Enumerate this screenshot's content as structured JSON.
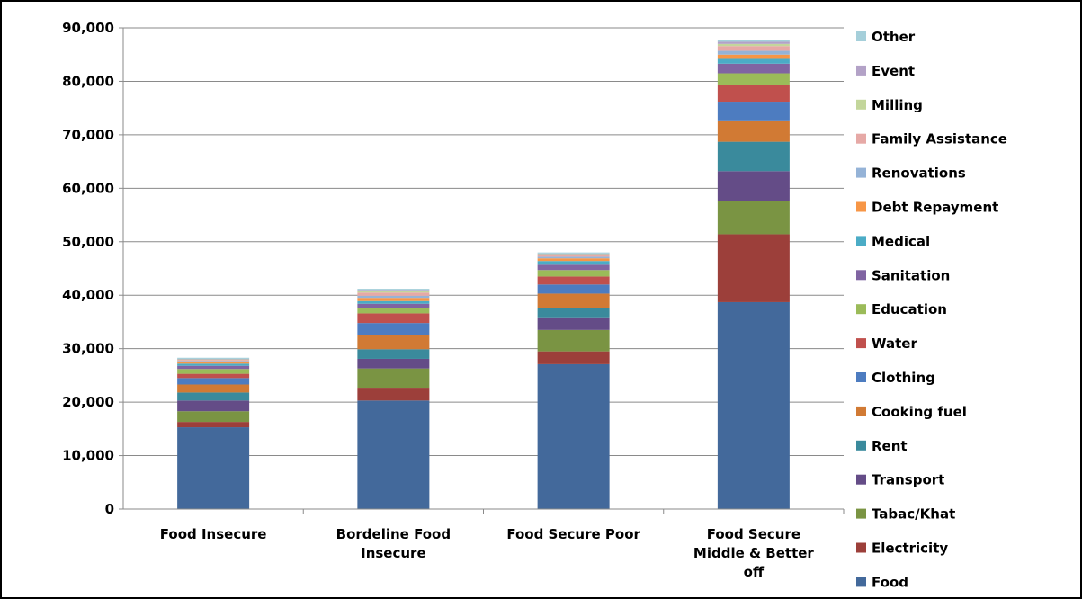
{
  "chart_data": {
    "type": "bar",
    "stacked": true,
    "categories": [
      [
        "Food Insecure"
      ],
      [
        "Bordeline Food",
        "Insecure"
      ],
      [
        "Food Secure Poor"
      ],
      [
        "Food Secure",
        "Middle & Better",
        "off"
      ]
    ],
    "ylim": [
      0,
      90000
    ],
    "yticks": [
      0,
      10000,
      20000,
      30000,
      40000,
      50000,
      60000,
      70000,
      80000,
      90000
    ],
    "ytick_labels": [
      "0",
      "10,000",
      "20,000",
      "30,000",
      "40,000",
      "50,000",
      "60,000",
      "70,000",
      "80,000",
      "90,000"
    ],
    "grid": true,
    "legend_placement": "right",
    "series": [
      {
        "name": "Food",
        "color": "#43699b",
        "values": [
          15300,
          20300,
          27100,
          38700
        ]
      },
      {
        "name": "Electricity",
        "color": "#9c3f3a",
        "values": [
          1000,
          2400,
          2400,
          12700
        ]
      },
      {
        "name": "Tabac/Khat",
        "color": "#7a9443",
        "values": [
          2000,
          3600,
          4000,
          6200
        ]
      },
      {
        "name": "Transport",
        "color": "#644c87",
        "values": [
          2000,
          1800,
          2200,
          5600
        ]
      },
      {
        "name": "Rent",
        "color": "#3a8a9c",
        "values": [
          1500,
          1800,
          1900,
          5500
        ]
      },
      {
        "name": "Cooking fuel",
        "color": "#d17a34",
        "values": [
          1500,
          2700,
          2700,
          4000
        ]
      },
      {
        "name": "Clothing",
        "color": "#4d7cc0",
        "values": [
          1200,
          2200,
          1700,
          3500
        ]
      },
      {
        "name": "Water",
        "color": "#c0504d",
        "values": [
          800,
          1800,
          1500,
          3100
        ]
      },
      {
        "name": "Education",
        "color": "#9bbb59",
        "values": [
          900,
          1000,
          1200,
          2200
        ]
      },
      {
        "name": "Sanitation",
        "color": "#8064a2",
        "values": [
          600,
          800,
          1000,
          1800
        ]
      },
      {
        "name": "Medical",
        "color": "#4bacc6",
        "values": [
          400,
          500,
          700,
          900
        ]
      },
      {
        "name": "Debt Repayment",
        "color": "#f79646",
        "values": [
          300,
          600,
          500,
          800
        ]
      },
      {
        "name": "Renovations",
        "color": "#95b3d7",
        "values": [
          200,
          400,
          300,
          700
        ]
      },
      {
        "name": "Family Assistance",
        "color": "#e6a9a6",
        "values": [
          200,
          600,
          300,
          900
        ]
      },
      {
        "name": "Milling",
        "color": "#c3d69b",
        "values": [
          100,
          300,
          200,
          400
        ]
      },
      {
        "name": "Event",
        "color": "#b3a2c7",
        "values": [
          100,
          200,
          100,
          400
        ]
      },
      {
        "name": "Other",
        "color": "#a5cfda",
        "values": [
          200,
          200,
          200,
          300
        ]
      }
    ]
  }
}
